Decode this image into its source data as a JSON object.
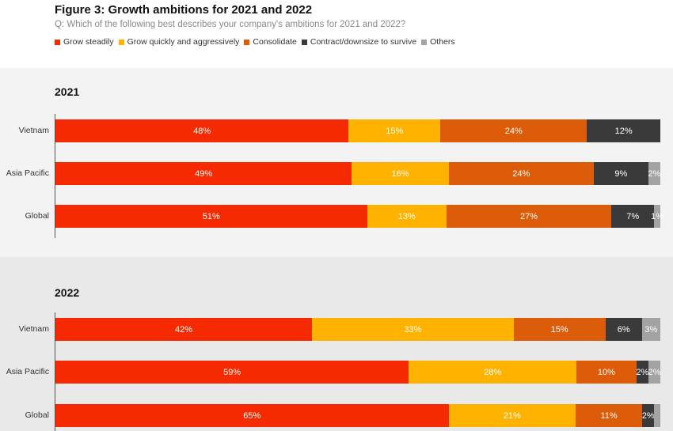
{
  "header": {
    "title": "Figure 3: Growth ambitions for 2021 and 2022",
    "subtitle": "Q: Which of the following best describes your company's ambitions for 2021 and 2022?"
  },
  "legend": [
    {
      "label": "Grow steadily",
      "color": "#f52a00"
    },
    {
      "label": "Grow quickly and aggressively",
      "color": "#ffb300"
    },
    {
      "label": "Consolidate",
      "color": "#dd5c0a"
    },
    {
      "label": "Contract/downsize to survive",
      "color": "#3a3a3a"
    },
    {
      "label": "Others",
      "color": "#a3a3a3"
    }
  ],
  "chart_data": [
    {
      "type": "bar",
      "stacked": true,
      "orientation": "horizontal",
      "title": "2021",
      "categories": [
        "Vietnam",
        "Asia Pacific",
        "Global"
      ],
      "series": [
        {
          "name": "Grow steadily",
          "values": [
            48,
            49,
            51
          ],
          "labels": [
            "48%",
            "49%",
            "51%"
          ]
        },
        {
          "name": "Grow quickly and aggressively",
          "values": [
            15,
            16,
            13
          ],
          "labels": [
            "15%",
            "16%",
            "13%"
          ]
        },
        {
          "name": "Consolidate",
          "values": [
            24,
            24,
            27
          ],
          "labels": [
            "24%",
            "24%",
            "27%"
          ]
        },
        {
          "name": "Contract/downsize to survive",
          "values": [
            12,
            9,
            7
          ],
          "labels": [
            "12%",
            "9%",
            "7%"
          ]
        },
        {
          "name": "Others",
          "values": [
            0,
            2,
            1
          ],
          "labels": [
            "",
            "2%",
            "1%"
          ]
        }
      ]
    },
    {
      "type": "bar",
      "stacked": true,
      "orientation": "horizontal",
      "title": "2022",
      "categories": [
        "Vietnam",
        "Asia Pacific",
        "Global"
      ],
      "series": [
        {
          "name": "Grow steadily",
          "values": [
            42,
            59,
            65
          ],
          "labels": [
            "42%",
            "59%",
            "65%"
          ]
        },
        {
          "name": "Grow quickly and aggressively",
          "values": [
            33,
            28,
            21
          ],
          "labels": [
            "33%",
            "28%",
            "21%"
          ]
        },
        {
          "name": "Consolidate",
          "values": [
            15,
            10,
            11
          ],
          "labels": [
            "15%",
            "10%",
            "11%"
          ]
        },
        {
          "name": "Contract/downsize to survive",
          "values": [
            6,
            2,
            2
          ],
          "labels": [
            "6%",
            "2%",
            "2%"
          ]
        },
        {
          "name": "Others",
          "values": [
            3,
            2,
            1
          ],
          "labels": [
            "3%",
            "2%",
            ""
          ]
        }
      ]
    }
  ]
}
